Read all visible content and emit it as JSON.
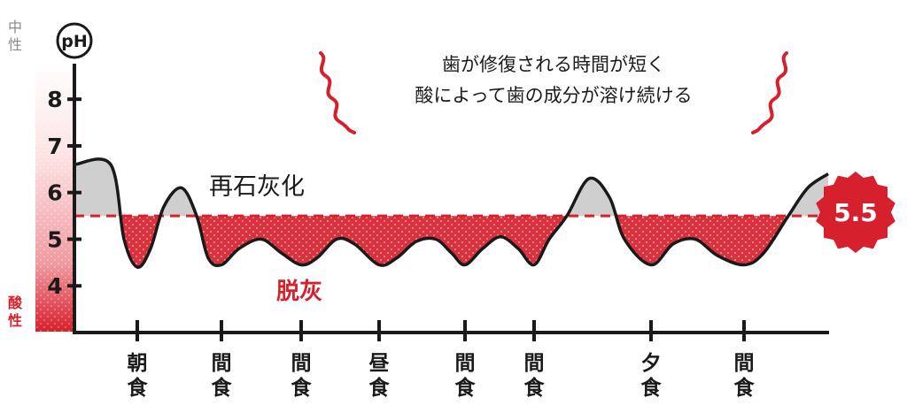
{
  "chart_data": {
    "type": "line",
    "ylabel": "pH",
    "yticks": [
      4,
      5,
      6,
      7,
      8
    ],
    "ylim": [
      3.0,
      8.8
    ],
    "scale_top_label": [
      "中",
      "性"
    ],
    "scale_bottom_label": [
      "酸",
      "性"
    ],
    "threshold": {
      "value": 5.5,
      "label": "5.5"
    },
    "annotation_lines": [
      "歯が修復される時間が短く",
      "酸によって歯の成分が溶け続ける"
    ],
    "above_label": "再石灰化",
    "below_label": "脱灰",
    "meals": [
      {
        "label": "朝食",
        "x": 155
      },
      {
        "label": "間食",
        "x": 250
      },
      {
        "label": "間食",
        "x": 340
      },
      {
        "label": "昼食",
        "x": 428
      },
      {
        "label": "間食",
        "x": 525
      },
      {
        "label": "間食",
        "x": 603
      },
      {
        "label": "夕食",
        "x": 735
      },
      {
        "label": "間食",
        "x": 840
      }
    ],
    "series": [
      {
        "points": [
          [
            84,
            6.6
          ],
          [
            125,
            6.6
          ],
          [
            140,
            5.0
          ],
          [
            155,
            4.4
          ],
          [
            170,
            4.8
          ],
          [
            185,
            5.7
          ],
          [
            205,
            6.1
          ],
          [
            222,
            5.5
          ],
          [
            235,
            4.6
          ],
          [
            250,
            4.45
          ],
          [
            270,
            4.8
          ],
          [
            295,
            5.0
          ],
          [
            318,
            4.7
          ],
          [
            340,
            4.45
          ],
          [
            358,
            4.6
          ],
          [
            380,
            5.0
          ],
          [
            400,
            4.9
          ],
          [
            428,
            4.45
          ],
          [
            448,
            4.6
          ],
          [
            470,
            4.95
          ],
          [
            492,
            5.0
          ],
          [
            510,
            4.7
          ],
          [
            525,
            4.45
          ],
          [
            545,
            4.8
          ],
          [
            565,
            5.05
          ],
          [
            585,
            4.8
          ],
          [
            603,
            4.45
          ],
          [
            620,
            5.0
          ],
          [
            640,
            5.5
          ],
          [
            665,
            6.3
          ],
          [
            688,
            5.9
          ],
          [
            705,
            5.0
          ],
          [
            735,
            4.45
          ],
          [
            760,
            4.9
          ],
          [
            785,
            5.0
          ],
          [
            810,
            4.65
          ],
          [
            840,
            4.45
          ],
          [
            862,
            4.7
          ],
          [
            890,
            5.5
          ],
          [
            912,
            6.1
          ],
          [
            935,
            6.4
          ]
        ]
      }
    ],
    "colors": {
      "accent": "#d7202e",
      "curve": "#1a1a1a",
      "remin_fill": "#cfcfcf",
      "demin_fill": "#d7202e"
    }
  }
}
